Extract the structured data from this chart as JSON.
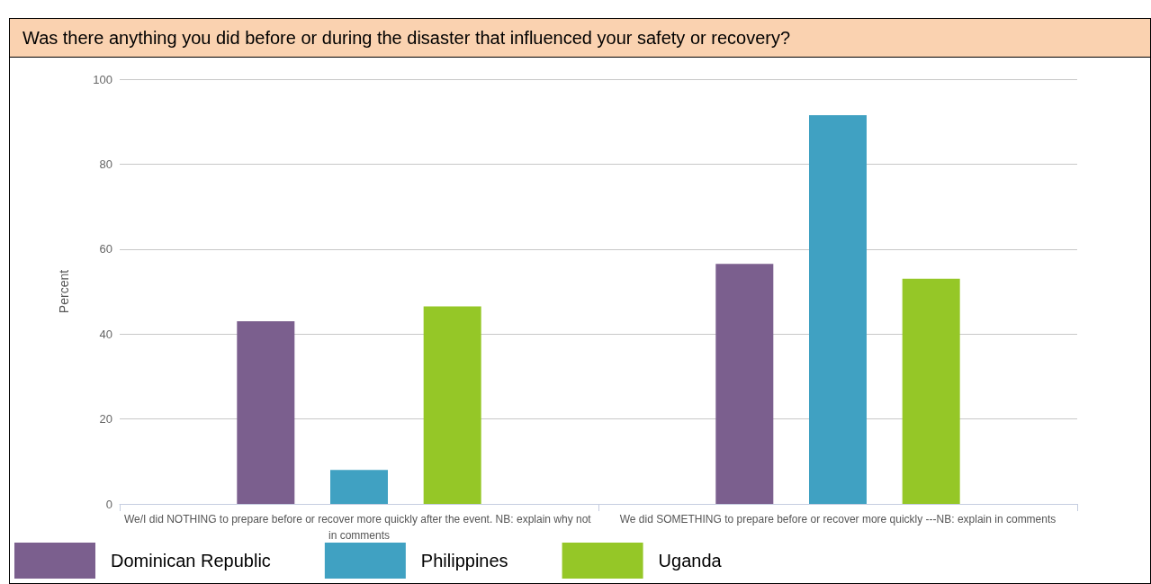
{
  "chart_data": {
    "type": "bar",
    "title": "Was there anything you did before or during the disaster that influenced your safety or recovery?",
    "ylabel": "Percent",
    "categories": [
      "We/I did NOTHING to prepare before or recover more quickly after the event. NB: explain why not in comments",
      "We did SOMETHING to prepare before or recover more quickly ---NB: explain in comments"
    ],
    "series": [
      {
        "name": "Dominican Republic",
        "color": "#7b5f8e",
        "values": [
          43,
          56.5
        ]
      },
      {
        "name": "Philippines",
        "color": "#40a1c2",
        "values": [
          8,
          91.5
        ]
      },
      {
        "name": "Uganda",
        "color": "#95c727",
        "values": [
          46.5,
          53
        ]
      }
    ],
    "ylim": [
      0,
      100
    ],
    "yticks": [
      0,
      20,
      40,
      60,
      80,
      100
    ],
    "grid": "y",
    "legend": "bottom"
  }
}
